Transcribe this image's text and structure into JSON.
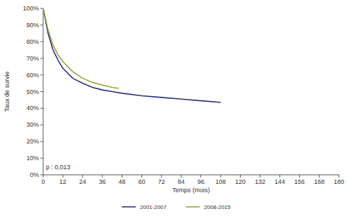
{
  "chart_data": {
    "type": "line",
    "x_label": "Temps (mois)",
    "y_label": "Taux de survie",
    "annotation": "p : 0,013",
    "xlim": [
      0,
      180
    ],
    "xticks": [
      0,
      12,
      24,
      36,
      48,
      60,
      72,
      84,
      96,
      108,
      120,
      132,
      144,
      156,
      168,
      180
    ],
    "ylim": [
      0,
      100
    ],
    "yticks": [
      {
        "value": 0,
        "label": "0%"
      },
      {
        "value": 10,
        "label": "10%"
      },
      {
        "value": 20,
        "label": "20%"
      },
      {
        "value": 30,
        "label": "30%"
      },
      {
        "value": 40,
        "label": "40%"
      },
      {
        "value": 50,
        "label": "50%"
      },
      {
        "value": 60,
        "label": "60%"
      },
      {
        "value": 70,
        "label": "70%"
      },
      {
        "value": 80,
        "label": "80%"
      },
      {
        "value": 90,
        "label": "90%"
      },
      {
        "value": 100,
        "label": "100%"
      }
    ],
    "grid": false,
    "legend": "bottom",
    "series": [
      {
        "name": "2001-2007",
        "color": "#2b2f7a",
        "x": [
          0,
          3,
          6,
          9,
          12,
          18,
          24,
          30,
          36,
          42,
          48,
          60,
          72,
          84,
          96,
          108
        ],
        "values": [
          100,
          85,
          75,
          69,
          64,
          58,
          55,
          52.5,
          51,
          50,
          49,
          47.5,
          46.5,
          45.5,
          44.5,
          43.5
        ]
      },
      {
        "name": "2008-2015",
        "color": "#8fa832",
        "x": [
          0,
          3,
          6,
          9,
          12,
          18,
          24,
          30,
          36,
          42,
          46
        ],
        "values": [
          100,
          87,
          78,
          72,
          68,
          62,
          58,
          55.5,
          54,
          52.5,
          52
        ]
      }
    ]
  }
}
